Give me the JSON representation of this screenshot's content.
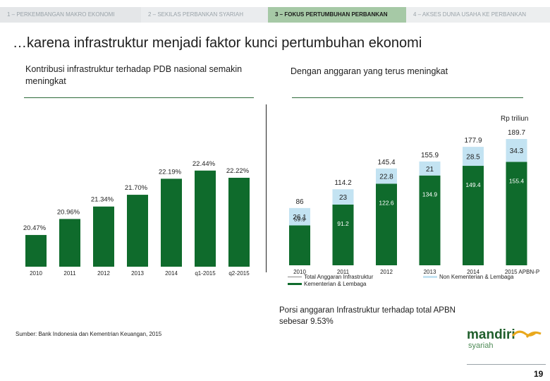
{
  "nav": {
    "tabs": [
      {
        "label": "1 – PERKEMBANGAN MAKRO EKONOMI"
      },
      {
        "label": "2 – SEKILAS PERBANKAN SYARIAH"
      },
      {
        "label": "3 – FOKUS PERTUMBUHAN PERBANKAN"
      },
      {
        "label": "4 – AKSES DUNIA USAHA KE PERBANKAN"
      }
    ]
  },
  "headline": "…karena infrastruktur menjadi faktor kunci pertumbuhan ekonomi",
  "left_subtitle": "Kontribusi infrastruktur terhadap PDB nasional semakin meningkat",
  "right_subtitle": "Dengan anggaran yang terus meningkat",
  "unit_label": "Rp triliun",
  "colors": {
    "dark_green": "#0f6b2c",
    "light_blue": "#c3e3f2",
    "nav_active": "#a6c9a6",
    "rule": "#2d6b3a"
  },
  "chart_data": [
    {
      "type": "bar",
      "categories": [
        "2010",
        "2011",
        "2012",
        "2013",
        "2014",
        "q1-2015",
        "q2-2015"
      ],
      "values": [
        20.47,
        20.96,
        21.34,
        21.7,
        22.19,
        22.44,
        22.22
      ],
      "value_labels": [
        "20.47%",
        "20.96%",
        "21.34%",
        "21.70%",
        "22.19%",
        "22.44%",
        "22.22%"
      ],
      "ylim": [
        19.5,
        22.6
      ]
    },
    {
      "type": "bar",
      "categories": [
        "2010",
        "2011",
        "2012",
        "2013",
        "2014",
        "2015 APBN-P"
      ],
      "series": [
        {
          "name": "Kementerian & Lembaga",
          "values": [
            59.9,
            91.2,
            122.6,
            134.9,
            149.4,
            155.4
          ],
          "labels": [
            "59.9",
            "91.2",
            "122.6",
            "134.9",
            "149.4",
            "155.4"
          ]
        },
        {
          "name": "Non Kementerian & Lembaga",
          "values": [
            26.1,
            23.0,
            22.8,
            21.0,
            28.5,
            34.3
          ],
          "labels": [
            "26.1",
            "23",
            "22.8",
            "21",
            "28.5",
            "34.3"
          ]
        }
      ],
      "totals": [
        86,
        114.2,
        145.4,
        155.9,
        177.9,
        189.7
      ],
      "total_labels": [
        "86",
        "114.2",
        "145.4",
        "155.9",
        "177.9",
        "189.7"
      ],
      "legend_left": "Total Anggaran Infrastruktur",
      "ylim": [
        0,
        195
      ]
    }
  ],
  "note": "Porsi anggaran Infrastruktur terhadap total APBN sebesar 9.53%",
  "source": "Sumber: Bank Indonesia dan Kementrian Keuangan, 2015",
  "logo": {
    "brand": "mandiri",
    "sub": "syariah"
  },
  "page_number": "19"
}
